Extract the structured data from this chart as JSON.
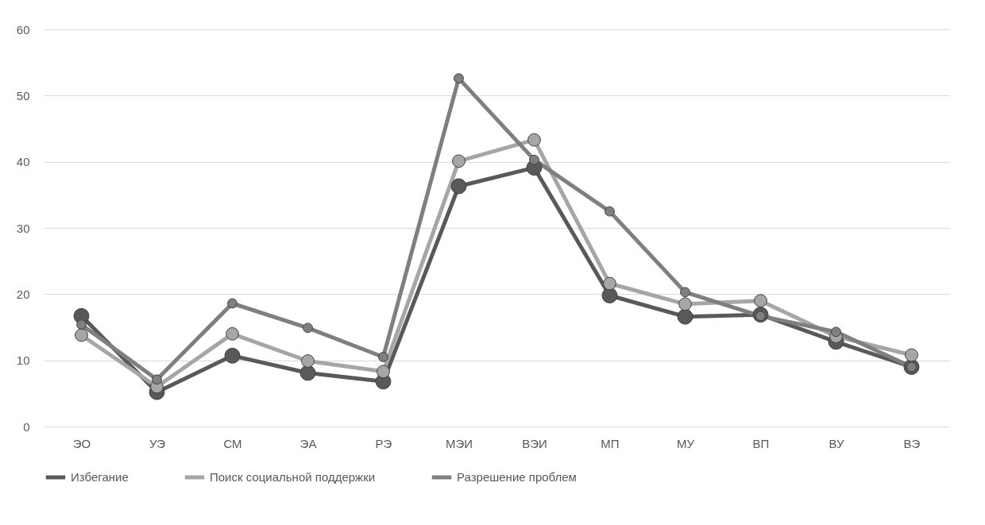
{
  "chart_data": {
    "type": "line",
    "categories": [
      "ЭО",
      "УЭ",
      "СМ",
      "ЭА",
      "РЭ",
      "МЭИ",
      "ВЭИ",
      "МП",
      "МУ",
      "ВП",
      "ВУ",
      "ВЭ"
    ],
    "series": [
      {
        "name": "Избегание",
        "color": "#595959",
        "values": [
          16.7,
          5.2,
          10.7,
          8.1,
          6.8,
          36.3,
          39.1,
          19.8,
          16.6,
          16.9,
          12.8,
          9.0
        ]
      },
      {
        "name": "Поиск социальной поддержки",
        "color": "#a6a6a6",
        "values": [
          13.8,
          6.0,
          14.0,
          9.9,
          8.3,
          40.1,
          43.3,
          21.6,
          18.5,
          19.0,
          13.6,
          10.8
        ]
      },
      {
        "name": "Разрешение проблем",
        "color": "#7f7f7f",
        "values": [
          15.4,
          7.1,
          18.6,
          14.9,
          10.5,
          52.6,
          40.3,
          32.5,
          20.3,
          16.7,
          14.3,
          9.0
        ]
      }
    ],
    "ylim": [
      0,
      60
    ],
    "yticks": [
      0,
      10,
      20,
      30,
      40,
      50,
      60
    ],
    "grid": "y",
    "legend": "bottom",
    "marker": "circle",
    "line_style": "solid"
  }
}
